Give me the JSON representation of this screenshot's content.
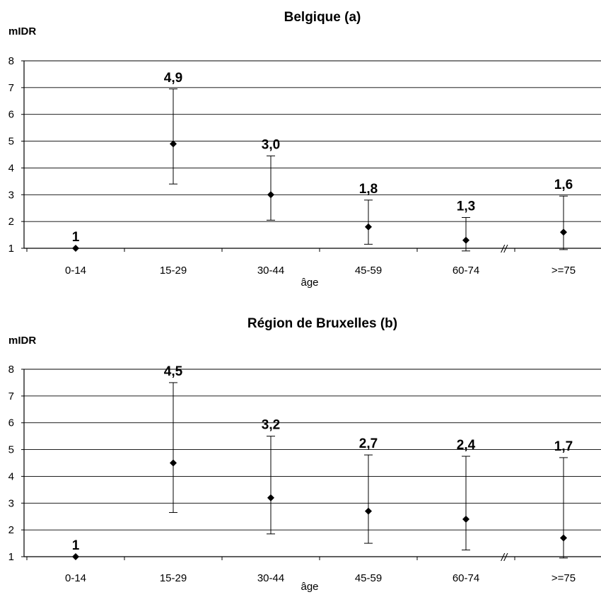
{
  "chart_data": [
    {
      "type": "scatter",
      "title": "Belgique (a)",
      "ylabel": "mIDR",
      "xlabel": "âge",
      "categories": [
        "0-14",
        "15-29",
        "30-44",
        "45-59",
        "60-74",
        ">=75"
      ],
      "values": [
        1,
        4.9,
        3.0,
        1.8,
        1.3,
        1.6
      ],
      "data_labels": [
        "1",
        "4,9",
        "3,0",
        "1,8",
        "1,3",
        "1,6"
      ],
      "error_low": [
        null,
        3.4,
        2.05,
        1.15,
        0.9,
        0.95
      ],
      "error_high": [
        null,
        6.95,
        4.45,
        2.8,
        2.15,
        2.95
      ],
      "ylim": [
        1,
        8
      ],
      "yticks": [
        1,
        2,
        3,
        4,
        5,
        6,
        7,
        8
      ],
      "grid": true,
      "axis_break_marker": "//"
    },
    {
      "type": "scatter",
      "title": "Région de Bruxelles (b)",
      "ylabel": "mIDR",
      "xlabel": "âge",
      "categories": [
        "0-14",
        "15-29",
        "30-44",
        "45-59",
        "60-74",
        ">=75"
      ],
      "values": [
        1,
        4.5,
        3.2,
        2.7,
        2.4,
        1.7
      ],
      "data_labels": [
        "1",
        "4,5",
        "3,2",
        "2,7",
        "2,4",
        "1,7"
      ],
      "error_low": [
        null,
        2.65,
        1.85,
        1.5,
        1.25,
        0.95
      ],
      "error_high": [
        null,
        7.5,
        5.5,
        4.8,
        4.75,
        4.7
      ],
      "ylim": [
        1,
        8
      ],
      "yticks": [
        1,
        2,
        3,
        4,
        5,
        6,
        7,
        8
      ],
      "grid": true,
      "axis_break_marker": "//"
    }
  ]
}
